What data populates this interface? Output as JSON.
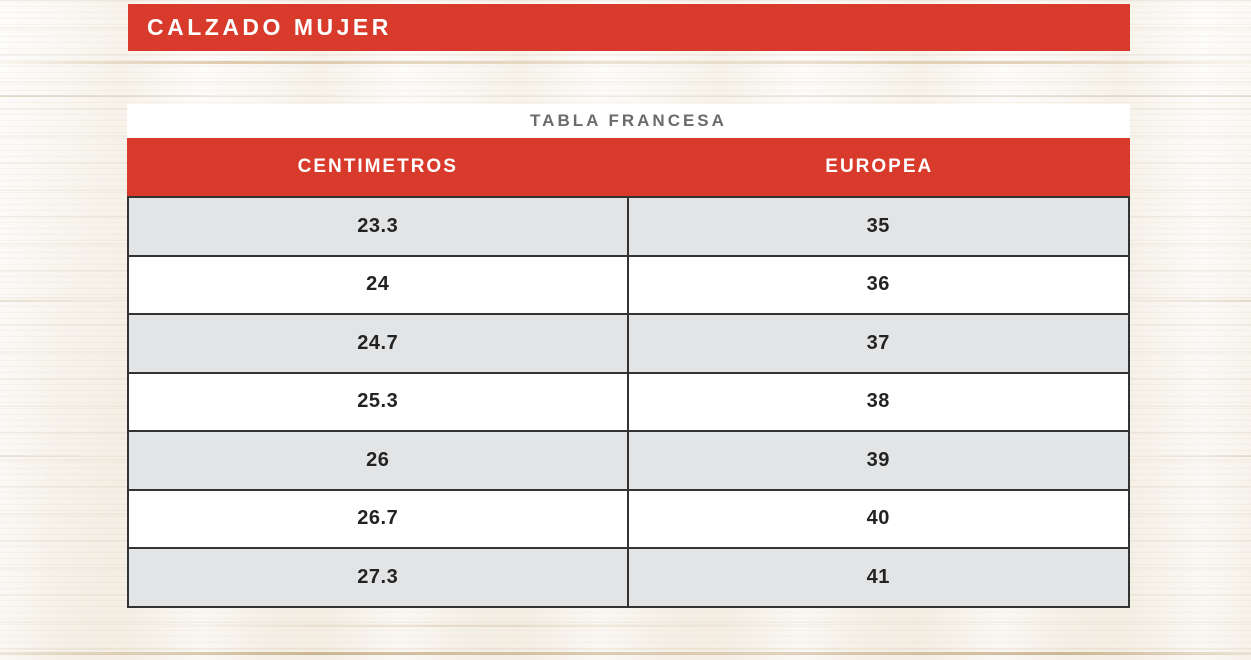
{
  "banner": {
    "label": "CALZADO MUJER"
  },
  "chart_data": {
    "type": "table",
    "title": "TABLA FRANCESA",
    "columns": [
      "CENTIMETROS",
      "EUROPEA"
    ],
    "rows": [
      [
        "23.3",
        "35"
      ],
      [
        "24",
        "36"
      ],
      [
        "24.7",
        "37"
      ],
      [
        "25.3",
        "38"
      ],
      [
        "26",
        "39"
      ],
      [
        "26.7",
        "40"
      ],
      [
        "27.3",
        "41"
      ]
    ]
  },
  "colors": {
    "accent_red": "#d83a2b",
    "banner_text": "#ffffff",
    "table_title_gray": "#6a6b6d",
    "row_alt_gray": "#e3e4e6",
    "row_white": "#ffffff",
    "table_border": "#333333",
    "cell_text": "#232323"
  }
}
